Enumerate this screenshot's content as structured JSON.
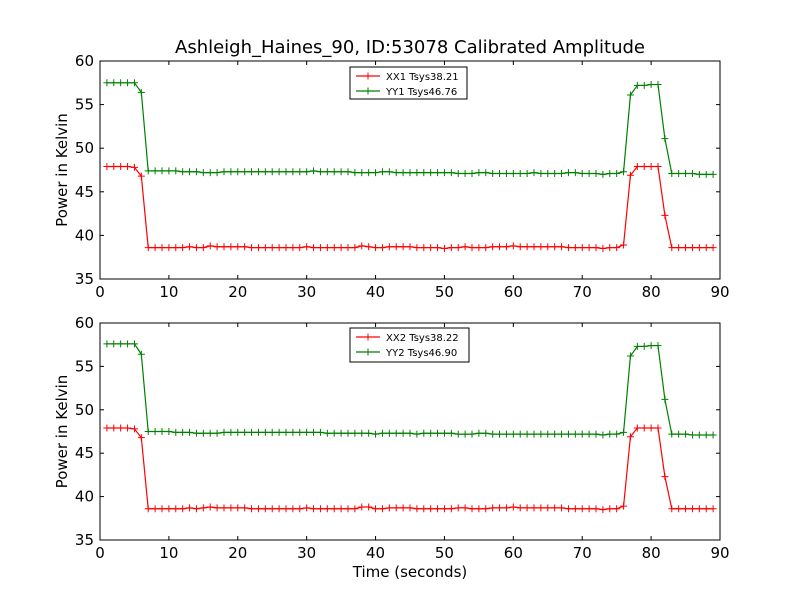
{
  "figure": {
    "title": "Ashleigh_Haines_90, ID:53078 Calibrated Amplitude"
  },
  "chart_data": [
    {
      "type": "line",
      "title": "Ashleigh_Haines_90, ID:53078 Calibrated Amplitude",
      "xlabel": "",
      "ylabel": "Power in Kelvin",
      "xlim": [
        0,
        90
      ],
      "ylim": [
        35,
        60
      ],
      "xticks": [
        "0",
        "10",
        "20",
        "30",
        "40",
        "50",
        "60",
        "70",
        "80",
        "90"
      ],
      "yticks": [
        "35",
        "40",
        "45",
        "50",
        "55",
        "60"
      ],
      "grid": false,
      "legend_position": "top-center",
      "x": [
        1,
        2,
        3,
        4,
        5,
        6,
        7,
        8,
        9,
        10,
        11,
        12,
        13,
        14,
        15,
        16,
        17,
        18,
        19,
        20,
        21,
        22,
        23,
        24,
        25,
        26,
        27,
        28,
        29,
        30,
        31,
        32,
        33,
        34,
        35,
        36,
        37,
        38,
        39,
        40,
        41,
        42,
        43,
        44,
        45,
        46,
        47,
        48,
        49,
        50,
        51,
        52,
        53,
        54,
        55,
        56,
        57,
        58,
        59,
        60,
        61,
        62,
        63,
        64,
        65,
        66,
        67,
        68,
        69,
        70,
        71,
        72,
        73,
        74,
        75,
        76,
        77,
        78,
        79,
        80,
        81,
        82,
        83,
        84,
        85,
        86,
        87,
        88,
        89
      ],
      "series": [
        {
          "name": "XX1 Tsys38.21",
          "color": "#ff0000",
          "values": [
            47.9,
            47.9,
            47.9,
            47.9,
            47.8,
            46.8,
            38.6,
            38.6,
            38.6,
            38.6,
            38.6,
            38.6,
            38.7,
            38.6,
            38.6,
            38.8,
            38.7,
            38.7,
            38.7,
            38.7,
            38.7,
            38.6,
            38.6,
            38.6,
            38.6,
            38.6,
            38.6,
            38.6,
            38.6,
            38.7,
            38.6,
            38.6,
            38.6,
            38.6,
            38.6,
            38.6,
            38.6,
            38.8,
            38.7,
            38.6,
            38.6,
            38.7,
            38.7,
            38.7,
            38.7,
            38.6,
            38.6,
            38.6,
            38.6,
            38.5,
            38.6,
            38.6,
            38.7,
            38.6,
            38.6,
            38.6,
            38.7,
            38.7,
            38.7,
            38.8,
            38.7,
            38.7,
            38.7,
            38.7,
            38.7,
            38.7,
            38.7,
            38.6,
            38.6,
            38.6,
            38.6,
            38.6,
            38.5,
            38.6,
            38.6,
            38.9,
            46.9,
            47.9,
            47.9,
            47.9,
            47.9,
            42.3,
            38.6,
            38.6,
            38.6,
            38.6,
            38.6,
            38.6,
            38.6
          ]
        },
        {
          "name": "YY1 Tsys46.76",
          "color": "#008000",
          "values": [
            57.5,
            57.5,
            57.5,
            57.5,
            57.5,
            56.4,
            47.4,
            47.4,
            47.4,
            47.4,
            47.4,
            47.3,
            47.3,
            47.3,
            47.2,
            47.2,
            47.2,
            47.3,
            47.3,
            47.3,
            47.3,
            47.3,
            47.3,
            47.3,
            47.3,
            47.3,
            47.3,
            47.3,
            47.3,
            47.3,
            47.4,
            47.3,
            47.3,
            47.3,
            47.3,
            47.3,
            47.2,
            47.2,
            47.2,
            47.2,
            47.3,
            47.3,
            47.2,
            47.2,
            47.2,
            47.2,
            47.2,
            47.2,
            47.2,
            47.2,
            47.2,
            47.1,
            47.1,
            47.1,
            47.2,
            47.2,
            47.1,
            47.1,
            47.1,
            47.1,
            47.1,
            47.1,
            47.2,
            47.1,
            47.1,
            47.1,
            47.1,
            47.2,
            47.2,
            47.1,
            47.1,
            47.1,
            47.0,
            47.1,
            47.1,
            47.3,
            56.1,
            57.2,
            57.2,
            57.3,
            57.3,
            51.1,
            47.1,
            47.1,
            47.1,
            47.1,
            47.0,
            47.0,
            47.0
          ]
        }
      ]
    },
    {
      "type": "line",
      "title": "",
      "xlabel": "Time (seconds)",
      "ylabel": "Power in Kelvin",
      "xlim": [
        0,
        90
      ],
      "ylim": [
        35,
        60
      ],
      "xticks": [
        "0",
        "10",
        "20",
        "30",
        "40",
        "50",
        "60",
        "70",
        "80",
        "90"
      ],
      "yticks": [
        "35",
        "40",
        "45",
        "50",
        "55",
        "60"
      ],
      "grid": false,
      "legend_position": "top-center",
      "x": [
        1,
        2,
        3,
        4,
        5,
        6,
        7,
        8,
        9,
        10,
        11,
        12,
        13,
        14,
        15,
        16,
        17,
        18,
        19,
        20,
        21,
        22,
        23,
        24,
        25,
        26,
        27,
        28,
        29,
        30,
        31,
        32,
        33,
        34,
        35,
        36,
        37,
        38,
        39,
        40,
        41,
        42,
        43,
        44,
        45,
        46,
        47,
        48,
        49,
        50,
        51,
        52,
        53,
        54,
        55,
        56,
        57,
        58,
        59,
        60,
        61,
        62,
        63,
        64,
        65,
        66,
        67,
        68,
        69,
        70,
        71,
        72,
        73,
        74,
        75,
        76,
        77,
        78,
        79,
        80,
        81,
        82,
        83,
        84,
        85,
        86,
        87,
        88,
        89
      ],
      "series": [
        {
          "name": "XX2 Tsys38.22",
          "color": "#ff0000",
          "values": [
            47.9,
            47.9,
            47.9,
            47.9,
            47.8,
            46.8,
            38.6,
            38.6,
            38.6,
            38.6,
            38.6,
            38.6,
            38.7,
            38.6,
            38.7,
            38.8,
            38.7,
            38.7,
            38.7,
            38.7,
            38.7,
            38.6,
            38.6,
            38.6,
            38.6,
            38.6,
            38.6,
            38.6,
            38.6,
            38.7,
            38.6,
            38.6,
            38.6,
            38.6,
            38.6,
            38.6,
            38.6,
            38.8,
            38.8,
            38.6,
            38.6,
            38.7,
            38.7,
            38.7,
            38.7,
            38.6,
            38.6,
            38.6,
            38.6,
            38.6,
            38.6,
            38.7,
            38.7,
            38.6,
            38.6,
            38.6,
            38.7,
            38.7,
            38.7,
            38.8,
            38.7,
            38.7,
            38.7,
            38.7,
            38.7,
            38.7,
            38.7,
            38.6,
            38.6,
            38.6,
            38.6,
            38.6,
            38.5,
            38.6,
            38.6,
            38.9,
            46.9,
            47.9,
            47.9,
            47.9,
            47.9,
            42.3,
            38.6,
            38.6,
            38.6,
            38.6,
            38.6,
            38.6,
            38.6
          ]
        },
        {
          "name": "YY2 Tsys46.90",
          "color": "#008000",
          "values": [
            57.6,
            57.6,
            57.6,
            57.6,
            57.6,
            56.4,
            47.5,
            47.5,
            47.5,
            47.5,
            47.4,
            47.4,
            47.4,
            47.3,
            47.3,
            47.3,
            47.3,
            47.4,
            47.4,
            47.4,
            47.4,
            47.4,
            47.4,
            47.4,
            47.4,
            47.4,
            47.4,
            47.4,
            47.4,
            47.4,
            47.4,
            47.4,
            47.3,
            47.3,
            47.3,
            47.3,
            47.3,
            47.3,
            47.3,
            47.2,
            47.3,
            47.3,
            47.3,
            47.3,
            47.3,
            47.2,
            47.3,
            47.3,
            47.3,
            47.3,
            47.3,
            47.2,
            47.2,
            47.2,
            47.3,
            47.3,
            47.2,
            47.2,
            47.2,
            47.2,
            47.2,
            47.2,
            47.2,
            47.2,
            47.2,
            47.2,
            47.2,
            47.2,
            47.2,
            47.2,
            47.2,
            47.2,
            47.1,
            47.2,
            47.2,
            47.4,
            56.2,
            57.3,
            57.3,
            57.4,
            57.4,
            51.2,
            47.2,
            47.2,
            47.2,
            47.1,
            47.1,
            47.1,
            47.1
          ]
        }
      ]
    }
  ]
}
